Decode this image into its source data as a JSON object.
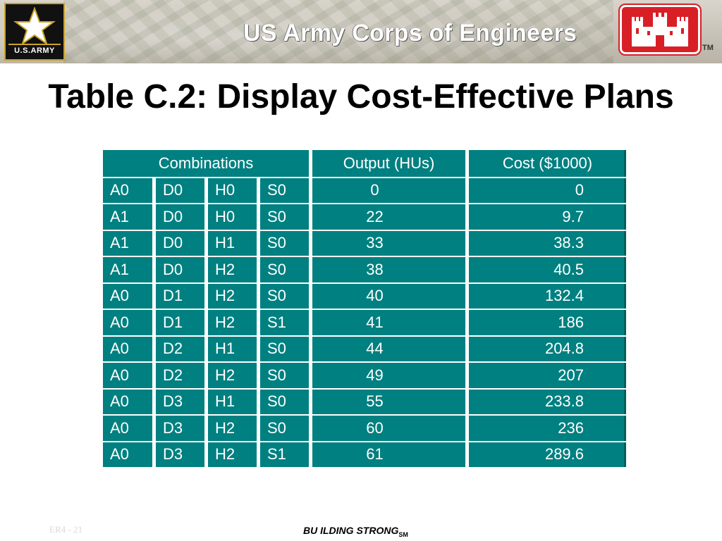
{
  "header": {
    "army_logo_text": "U.S.ARMY",
    "org_title": "US Army Corps of Engineers",
    "trademark": "TM"
  },
  "title": "Table C.2:  Display Cost-Effective Plans",
  "table": {
    "headers": [
      "Combinations",
      "Output (HUs)",
      "Cost ($1000)"
    ],
    "rows": [
      {
        "a": "A0",
        "d": "D0",
        "h": "H0",
        "s": "S0",
        "output": "0",
        "cost": "0"
      },
      {
        "a": "A1",
        "d": "D0",
        "h": "H0",
        "s": "S0",
        "output": "22",
        "cost": "9.7"
      },
      {
        "a": "A1",
        "d": "D0",
        "h": "H1",
        "s": "S0",
        "output": "33",
        "cost": "38.3"
      },
      {
        "a": "A1",
        "d": "D0",
        "h": "H2",
        "s": "S0",
        "output": "38",
        "cost": "40.5"
      },
      {
        "a": "A0",
        "d": "D1",
        "h": "H2",
        "s": "S0",
        "output": "40",
        "cost": "132.4"
      },
      {
        "a": "A0",
        "d": "D1",
        "h": "H2",
        "s": "S1",
        "output": "41",
        "cost": "186"
      },
      {
        "a": "A0",
        "d": "D2",
        "h": "H1",
        "s": "S0",
        "output": "44",
        "cost": "204.8"
      },
      {
        "a": "A0",
        "d": "D2",
        "h": "H2",
        "s": "S0",
        "output": "49",
        "cost": "207"
      },
      {
        "a": "A0",
        "d": "D3",
        "h": "H1",
        "s": "S0",
        "output": "55",
        "cost": "233.8"
      },
      {
        "a": "A0",
        "d": "D3",
        "h": "H2",
        "s": "S0",
        "output": "60",
        "cost": "236"
      },
      {
        "a": "A0",
        "d": "D3",
        "h": "H2",
        "s": "S1",
        "output": "61",
        "cost": "289.6"
      }
    ]
  },
  "footer": {
    "slide_id": "ER4 - 21",
    "tagline": "BU ILDING STRONG",
    "tagline_mark": "SM"
  },
  "colors": {
    "table_fill": "#008080",
    "table_text": "#ffffff",
    "brand_red": "#d81f26",
    "army_gold": "#c9a227"
  },
  "icons": [
    "army-star-icon",
    "castle-icon"
  ]
}
